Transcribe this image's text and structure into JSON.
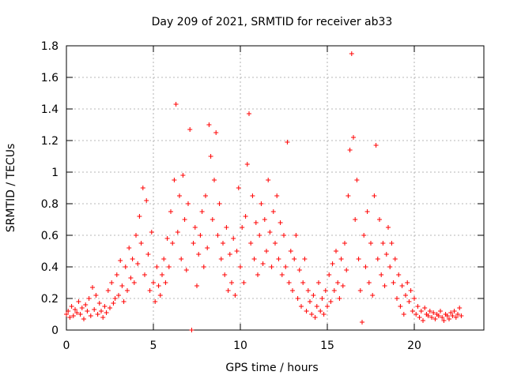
{
  "chart_data": {
    "type": "scatter",
    "title": "Day 209 of 2021, SRMTID for receiver ab33",
    "xlabel": "GPS time / hours",
    "ylabel": "SRMTID / TECUs",
    "xlim": [
      0,
      24
    ],
    "ylim": [
      0,
      1.8
    ],
    "xticks": [
      0,
      5,
      10,
      15,
      20
    ],
    "yticks": [
      0,
      0.2,
      0.4,
      0.6,
      0.8,
      1,
      1.2,
      1.4,
      1.6,
      1.8
    ],
    "ytick_labels": [
      "0",
      "0.2",
      "0.4",
      "0.6",
      "0.8",
      "1",
      "1.2",
      "1.4",
      "1.6",
      "1.8"
    ],
    "grid": true,
    "marker": "+",
    "color": "#ff0000",
    "series": [
      {
        "name": "SRMTID",
        "points": [
          [
            0.0,
            0.1
          ],
          [
            0.1,
            0.12
          ],
          [
            0.2,
            0.08
          ],
          [
            0.3,
            0.15
          ],
          [
            0.4,
            0.09
          ],
          [
            0.5,
            0.13
          ],
          [
            0.6,
            0.11
          ],
          [
            0.7,
            0.18
          ],
          [
            0.8,
            0.1
          ],
          [
            0.9,
            0.14
          ],
          [
            1.0,
            0.07
          ],
          [
            1.1,
            0.16
          ],
          [
            1.2,
            0.12
          ],
          [
            1.3,
            0.2
          ],
          [
            1.4,
            0.09
          ],
          [
            1.5,
            0.27
          ],
          [
            1.6,
            0.13
          ],
          [
            1.7,
            0.22
          ],
          [
            1.8,
            0.1
          ],
          [
            1.9,
            0.17
          ],
          [
            2.0,
            0.12
          ],
          [
            2.1,
            0.08
          ],
          [
            2.2,
            0.15
          ],
          [
            2.3,
            0.11
          ],
          [
            2.4,
            0.25
          ],
          [
            2.5,
            0.14
          ],
          [
            2.6,
            0.3
          ],
          [
            2.7,
            0.17
          ],
          [
            2.8,
            0.2
          ],
          [
            2.9,
            0.35
          ],
          [
            3.0,
            0.22
          ],
          [
            3.1,
            0.44
          ],
          [
            3.2,
            0.28
          ],
          [
            3.3,
            0.18
          ],
          [
            3.4,
            0.4
          ],
          [
            3.5,
            0.25
          ],
          [
            3.6,
            0.52
          ],
          [
            3.7,
            0.33
          ],
          [
            3.8,
            0.45
          ],
          [
            3.9,
            0.3
          ],
          [
            4.0,
            0.6
          ],
          [
            4.1,
            0.42
          ],
          [
            4.2,
            0.72
          ],
          [
            4.3,
            0.55
          ],
          [
            4.4,
            0.9
          ],
          [
            4.5,
            0.35
          ],
          [
            4.6,
            0.82
          ],
          [
            4.7,
            0.48
          ],
          [
            4.8,
            0.25
          ],
          [
            4.9,
            0.62
          ],
          [
            5.0,
            0.3
          ],
          [
            5.1,
            0.18
          ],
          [
            5.2,
            0.4
          ],
          [
            5.3,
            0.28
          ],
          [
            5.4,
            0.22
          ],
          [
            5.5,
            0.35
          ],
          [
            5.6,
            0.45
          ],
          [
            5.7,
            0.3
          ],
          [
            5.8,
            0.58
          ],
          [
            5.9,
            0.4
          ],
          [
            6.0,
            0.75
          ],
          [
            6.1,
            0.55
          ],
          [
            6.2,
            0.95
          ],
          [
            6.3,
            1.43
          ],
          [
            6.4,
            0.62
          ],
          [
            6.5,
            0.85
          ],
          [
            6.6,
            0.45
          ],
          [
            6.7,
            0.98
          ],
          [
            6.8,
            0.7
          ],
          [
            6.9,
            0.38
          ],
          [
            7.0,
            0.8
          ],
          [
            7.1,
            1.27
          ],
          [
            7.2,
            0.0
          ],
          [
            7.3,
            0.55
          ],
          [
            7.4,
            0.65
          ],
          [
            7.5,
            0.28
          ],
          [
            7.6,
            0.48
          ],
          [
            7.7,
            0.6
          ],
          [
            7.8,
            0.75
          ],
          [
            7.9,
            0.4
          ],
          [
            8.0,
            0.85
          ],
          [
            8.1,
            0.52
          ],
          [
            8.2,
            1.3
          ],
          [
            8.3,
            1.1
          ],
          [
            8.4,
            0.7
          ],
          [
            8.5,
            0.95
          ],
          [
            8.6,
            1.25
          ],
          [
            8.7,
            0.6
          ],
          [
            8.8,
            0.8
          ],
          [
            8.9,
            0.45
          ],
          [
            9.0,
            0.55
          ],
          [
            9.1,
            0.35
          ],
          [
            9.2,
            0.65
          ],
          [
            9.3,
            0.25
          ],
          [
            9.4,
            0.48
          ],
          [
            9.5,
            0.3
          ],
          [
            9.6,
            0.58
          ],
          [
            9.7,
            0.22
          ],
          [
            9.8,
            0.5
          ],
          [
            9.9,
            0.9
          ],
          [
            10.0,
            0.4
          ],
          [
            10.1,
            0.65
          ],
          [
            10.2,
            0.3
          ],
          [
            10.3,
            0.72
          ],
          [
            10.4,
            1.05
          ],
          [
            10.5,
            1.37
          ],
          [
            10.6,
            0.55
          ],
          [
            10.7,
            0.85
          ],
          [
            10.8,
            0.45
          ],
          [
            10.9,
            0.68
          ],
          [
            11.0,
            0.35
          ],
          [
            11.1,
            0.6
          ],
          [
            11.2,
            0.8
          ],
          [
            11.3,
            0.42
          ],
          [
            11.4,
            0.7
          ],
          [
            11.5,
            0.5
          ],
          [
            11.6,
            0.95
          ],
          [
            11.7,
            0.62
          ],
          [
            11.8,
            0.4
          ],
          [
            11.9,
            0.75
          ],
          [
            12.0,
            0.55
          ],
          [
            12.1,
            0.85
          ],
          [
            12.2,
            0.45
          ],
          [
            12.3,
            0.68
          ],
          [
            12.4,
            0.35
          ],
          [
            12.5,
            0.6
          ],
          [
            12.6,
            0.4
          ],
          [
            12.7,
            1.19
          ],
          [
            12.8,
            0.3
          ],
          [
            12.9,
            0.5
          ],
          [
            13.0,
            0.25
          ],
          [
            13.1,
            0.45
          ],
          [
            13.2,
            0.6
          ],
          [
            13.3,
            0.2
          ],
          [
            13.4,
            0.38
          ],
          [
            13.5,
            0.15
          ],
          [
            13.6,
            0.3
          ],
          [
            13.7,
            0.45
          ],
          [
            13.8,
            0.12
          ],
          [
            13.9,
            0.25
          ],
          [
            14.0,
            0.18
          ],
          [
            14.1,
            0.1
          ],
          [
            14.2,
            0.22
          ],
          [
            14.3,
            0.08
          ],
          [
            14.4,
            0.15
          ],
          [
            14.5,
            0.3
          ],
          [
            14.6,
            0.12
          ],
          [
            14.7,
            0.2
          ],
          [
            14.8,
            0.1
          ],
          [
            14.9,
            0.25
          ],
          [
            15.0,
            0.15
          ],
          [
            15.1,
            0.35
          ],
          [
            15.2,
            0.18
          ],
          [
            15.3,
            0.42
          ],
          [
            15.4,
            0.25
          ],
          [
            15.5,
            0.5
          ],
          [
            15.6,
            0.3
          ],
          [
            15.7,
            0.2
          ],
          [
            15.8,
            0.45
          ],
          [
            15.9,
            0.28
          ],
          [
            16.0,
            0.55
          ],
          [
            16.1,
            0.38
          ],
          [
            16.2,
            0.85
          ],
          [
            16.3,
            1.14
          ],
          [
            16.4,
            1.75
          ],
          [
            16.5,
            1.22
          ],
          [
            16.6,
            0.7
          ],
          [
            16.7,
            0.95
          ],
          [
            16.8,
            0.45
          ],
          [
            16.9,
            0.25
          ],
          [
            17.0,
            0.05
          ],
          [
            17.1,
            0.6
          ],
          [
            17.2,
            0.4
          ],
          [
            17.3,
            0.75
          ],
          [
            17.4,
            0.3
          ],
          [
            17.5,
            0.55
          ],
          [
            17.6,
            0.22
          ],
          [
            17.7,
            0.85
          ],
          [
            17.8,
            1.17
          ],
          [
            17.9,
            0.45
          ],
          [
            18.0,
            0.7
          ],
          [
            18.1,
            0.35
          ],
          [
            18.2,
            0.55
          ],
          [
            18.3,
            0.28
          ],
          [
            18.4,
            0.48
          ],
          [
            18.5,
            0.65
          ],
          [
            18.6,
            0.4
          ],
          [
            18.7,
            0.55
          ],
          [
            18.8,
            0.3
          ],
          [
            18.9,
            0.45
          ],
          [
            19.0,
            0.2
          ],
          [
            19.1,
            0.35
          ],
          [
            19.2,
            0.15
          ],
          [
            19.3,
            0.28
          ],
          [
            19.4,
            0.1
          ],
          [
            19.5,
            0.22
          ],
          [
            19.6,
            0.3
          ],
          [
            19.7,
            0.18
          ],
          [
            19.8,
            0.25
          ],
          [
            19.9,
            0.12
          ],
          [
            20.0,
            0.2
          ],
          [
            20.1,
            0.1
          ],
          [
            20.2,
            0.15
          ],
          [
            20.3,
            0.08
          ],
          [
            20.4,
            0.12
          ],
          [
            20.5,
            0.06
          ],
          [
            20.6,
            0.14
          ],
          [
            20.7,
            0.1
          ],
          [
            20.8,
            0.09
          ],
          [
            20.9,
            0.12
          ],
          [
            21.0,
            0.08
          ],
          [
            21.1,
            0.11
          ],
          [
            21.2,
            0.07
          ],
          [
            21.3,
            0.1
          ],
          [
            21.4,
            0.09
          ],
          [
            21.5,
            0.12
          ],
          [
            21.6,
            0.08
          ],
          [
            21.7,
            0.06
          ],
          [
            21.8,
            0.1
          ],
          [
            21.9,
            0.09
          ],
          [
            22.0,
            0.07
          ],
          [
            22.1,
            0.11
          ],
          [
            22.2,
            0.09
          ],
          [
            22.3,
            0.12
          ],
          [
            22.4,
            0.08
          ],
          [
            22.5,
            0.1
          ],
          [
            22.6,
            0.14
          ],
          [
            22.7,
            0.09
          ]
        ]
      }
    ]
  }
}
